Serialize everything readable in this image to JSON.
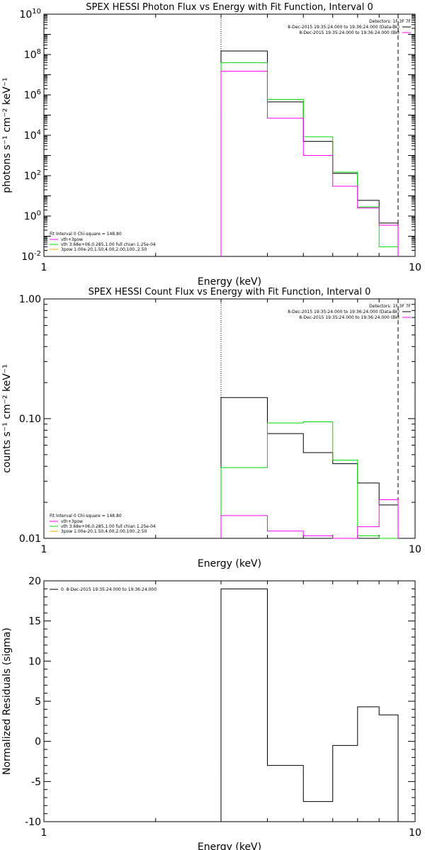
{
  "colors": {
    "data": "#000000",
    "total": "#ff00ff",
    "thermal": "#00dd00",
    "powerlaw": "#ffaa00"
  },
  "chart_data": [
    {
      "type": "line",
      "title": "SPEX HESSI Photon Flux vs Energy with Fit Function, Interval 0",
      "xlabel": "Energy (keV)",
      "ylabel": "photons s⁻¹ cm⁻² keV⁻¹",
      "xscale": "log",
      "yscale": "log",
      "xlim": [
        1,
        10
      ],
      "ylim": [
        0.01,
        10000000000.0
      ],
      "xticks": [
        {
          "v": 1,
          "label": "1"
        },
        {
          "v": 10,
          "label": "10"
        }
      ],
      "yticks": [
        {
          "v": 10000000000.0,
          "base": "10",
          "exp": "10"
        },
        {
          "v": 100000000.0,
          "base": "10",
          "exp": "8"
        },
        {
          "v": 1000000.0,
          "base": "10",
          "exp": "6"
        },
        {
          "v": 10000.0,
          "base": "10",
          "exp": "4"
        },
        {
          "v": 100.0,
          "base": "10",
          "exp": "2"
        },
        {
          "v": 1,
          "base": "10",
          "exp": "0"
        },
        {
          "v": 0.01,
          "base": "10",
          "exp": "-2"
        }
      ],
      "vlines": [
        {
          "x": 3.0,
          "style": "dotted"
        },
        {
          "x": 9.0,
          "style": "dashed"
        }
      ],
      "detectors": "Detectors: 1F 3F 7F",
      "legend_right": [
        {
          "text": "8-Dec-2015 19:35:24.000 to 19:36:24.000 (Data-Bk)",
          "color": "#000000"
        },
        {
          "text": "8-Dec-2015 19:35:24.000 to 19:36:24.000 (Bk)",
          "color": "#ff00ff"
        }
      ],
      "legend_left_header": "Fit Interval 0   Chi-square = 148.80",
      "legend_left": [
        {
          "text": "vth+3pow",
          "color": "#ff00ff"
        },
        {
          "text": "vth 3.68e+06,0.285,1.00  full chian 1.25e-04",
          "color": "#00dd00"
        },
        {
          "text": "3pow 1.00e-20,1.50,4.00,2.00,100.,2.50",
          "color": "#ffaa00"
        }
      ],
      "edges": [
        3.0,
        4.0,
        5.0,
        6.0,
        7.0,
        8.0,
        9.0
      ],
      "series": [
        {
          "color": "#000000",
          "values": [
            150000000.0,
            450000.0,
            5000,
            130,
            6,
            0.45
          ]
        },
        {
          "color": "#00dd00",
          "values": [
            40000000.0,
            600000.0,
            8500,
            150,
            2.8,
            0.03
          ]
        },
        {
          "color": "#ff00ff",
          "values": [
            15000000.0,
            70000.0,
            1000,
            30,
            2.5,
            0.35
          ]
        }
      ]
    },
    {
      "type": "line",
      "title": "SPEX HESSI Count Flux vs Energy with Fit Function, Interval 0",
      "xlabel": "Energy (keV)",
      "ylabel": "counts s⁻¹ cm⁻² keV⁻¹",
      "xscale": "log",
      "yscale": "log",
      "xlim": [
        1,
        10
      ],
      "ylim": [
        0.01,
        1.0
      ],
      "xticks": [
        {
          "v": 1,
          "label": "1"
        },
        {
          "v": 10,
          "label": "10"
        }
      ],
      "yticks": [
        {
          "v": 1.0,
          "label": "1.00"
        },
        {
          "v": 0.1,
          "label": "0.10"
        },
        {
          "v": 0.01,
          "label": "0.01"
        }
      ],
      "vlines": [
        {
          "x": 3.0,
          "style": "dotted"
        },
        {
          "x": 9.0,
          "style": "dashed"
        }
      ],
      "detectors": "Detectors: 1F 3F 7F",
      "legend_right": [
        {
          "text": "8-Dec-2015 19:35:24.000 to 19:36:24.000 (Data-Bk)",
          "color": "#000000"
        },
        {
          "text": "8-Dec-2015 19:35:24.000 to 19:36:24.000 (Bk)",
          "color": "#ff00ff"
        }
      ],
      "legend_left_header": "Fit Interval 0   Chi-square = 148.80",
      "legend_left": [
        {
          "text": "vth+3pow",
          "color": "#ff00ff"
        },
        {
          "text": "vth 3.68e+06,0.285,1.00  full chian 1.25e-04",
          "color": "#00dd00"
        },
        {
          "text": "3pow 1.00e-20,1.50,4.00,2.00,100.,2.50",
          "color": "#ffaa00"
        }
      ],
      "edges": [
        3.0,
        4.0,
        5.0,
        6.0,
        7.0,
        8.0,
        9.0
      ],
      "series": [
        {
          "color": "#000000",
          "values": [
            0.15,
            0.075,
            0.052,
            0.042,
            0.029,
            0.019
          ]
        },
        {
          "color": "#00dd00",
          "values": [
            0.039,
            0.092,
            0.094,
            0.045,
            0.0105,
            0.0085
          ]
        },
        {
          "color": "#ff00ff",
          "values": [
            0.0155,
            0.0115,
            0.0105,
            0.01,
            0.0125,
            0.021
          ]
        }
      ]
    },
    {
      "type": "line",
      "title": "",
      "xlabel": "Energy (keV)",
      "ylabel": "Normalized Residuals (sigma)",
      "xscale": "log",
      "yscale": "linear",
      "xlim": [
        1,
        10
      ],
      "ylim": [
        -10,
        20
      ],
      "xticks": [
        {
          "v": 1,
          "label": "1"
        },
        {
          "v": 10,
          "label": "10"
        }
      ],
      "yticks": [
        {
          "v": 20,
          "label": "20"
        },
        {
          "v": 15,
          "label": "15"
        },
        {
          "v": 10,
          "label": "10"
        },
        {
          "v": 5,
          "label": "5"
        },
        {
          "v": 0,
          "label": "0"
        },
        {
          "v": -5,
          "label": "-5"
        },
        {
          "v": -10,
          "label": "-10"
        }
      ],
      "vlines": [],
      "detectors": "",
      "legend_right": [],
      "legend_left_header": "",
      "legend_left": [],
      "legend_top": {
        "text": "0. 8-Dec-2015 19:35:24.000 to 19:36:24.000",
        "color": "#000000"
      },
      "edges": [
        3.0,
        4.0,
        5.0,
        6.0,
        7.0,
        8.0,
        9.0
      ],
      "series": [
        {
          "color": "#000000",
          "values": [
            19.0,
            -3.0,
            -7.5,
            -0.5,
            4.3,
            3.3
          ]
        }
      ]
    }
  ]
}
